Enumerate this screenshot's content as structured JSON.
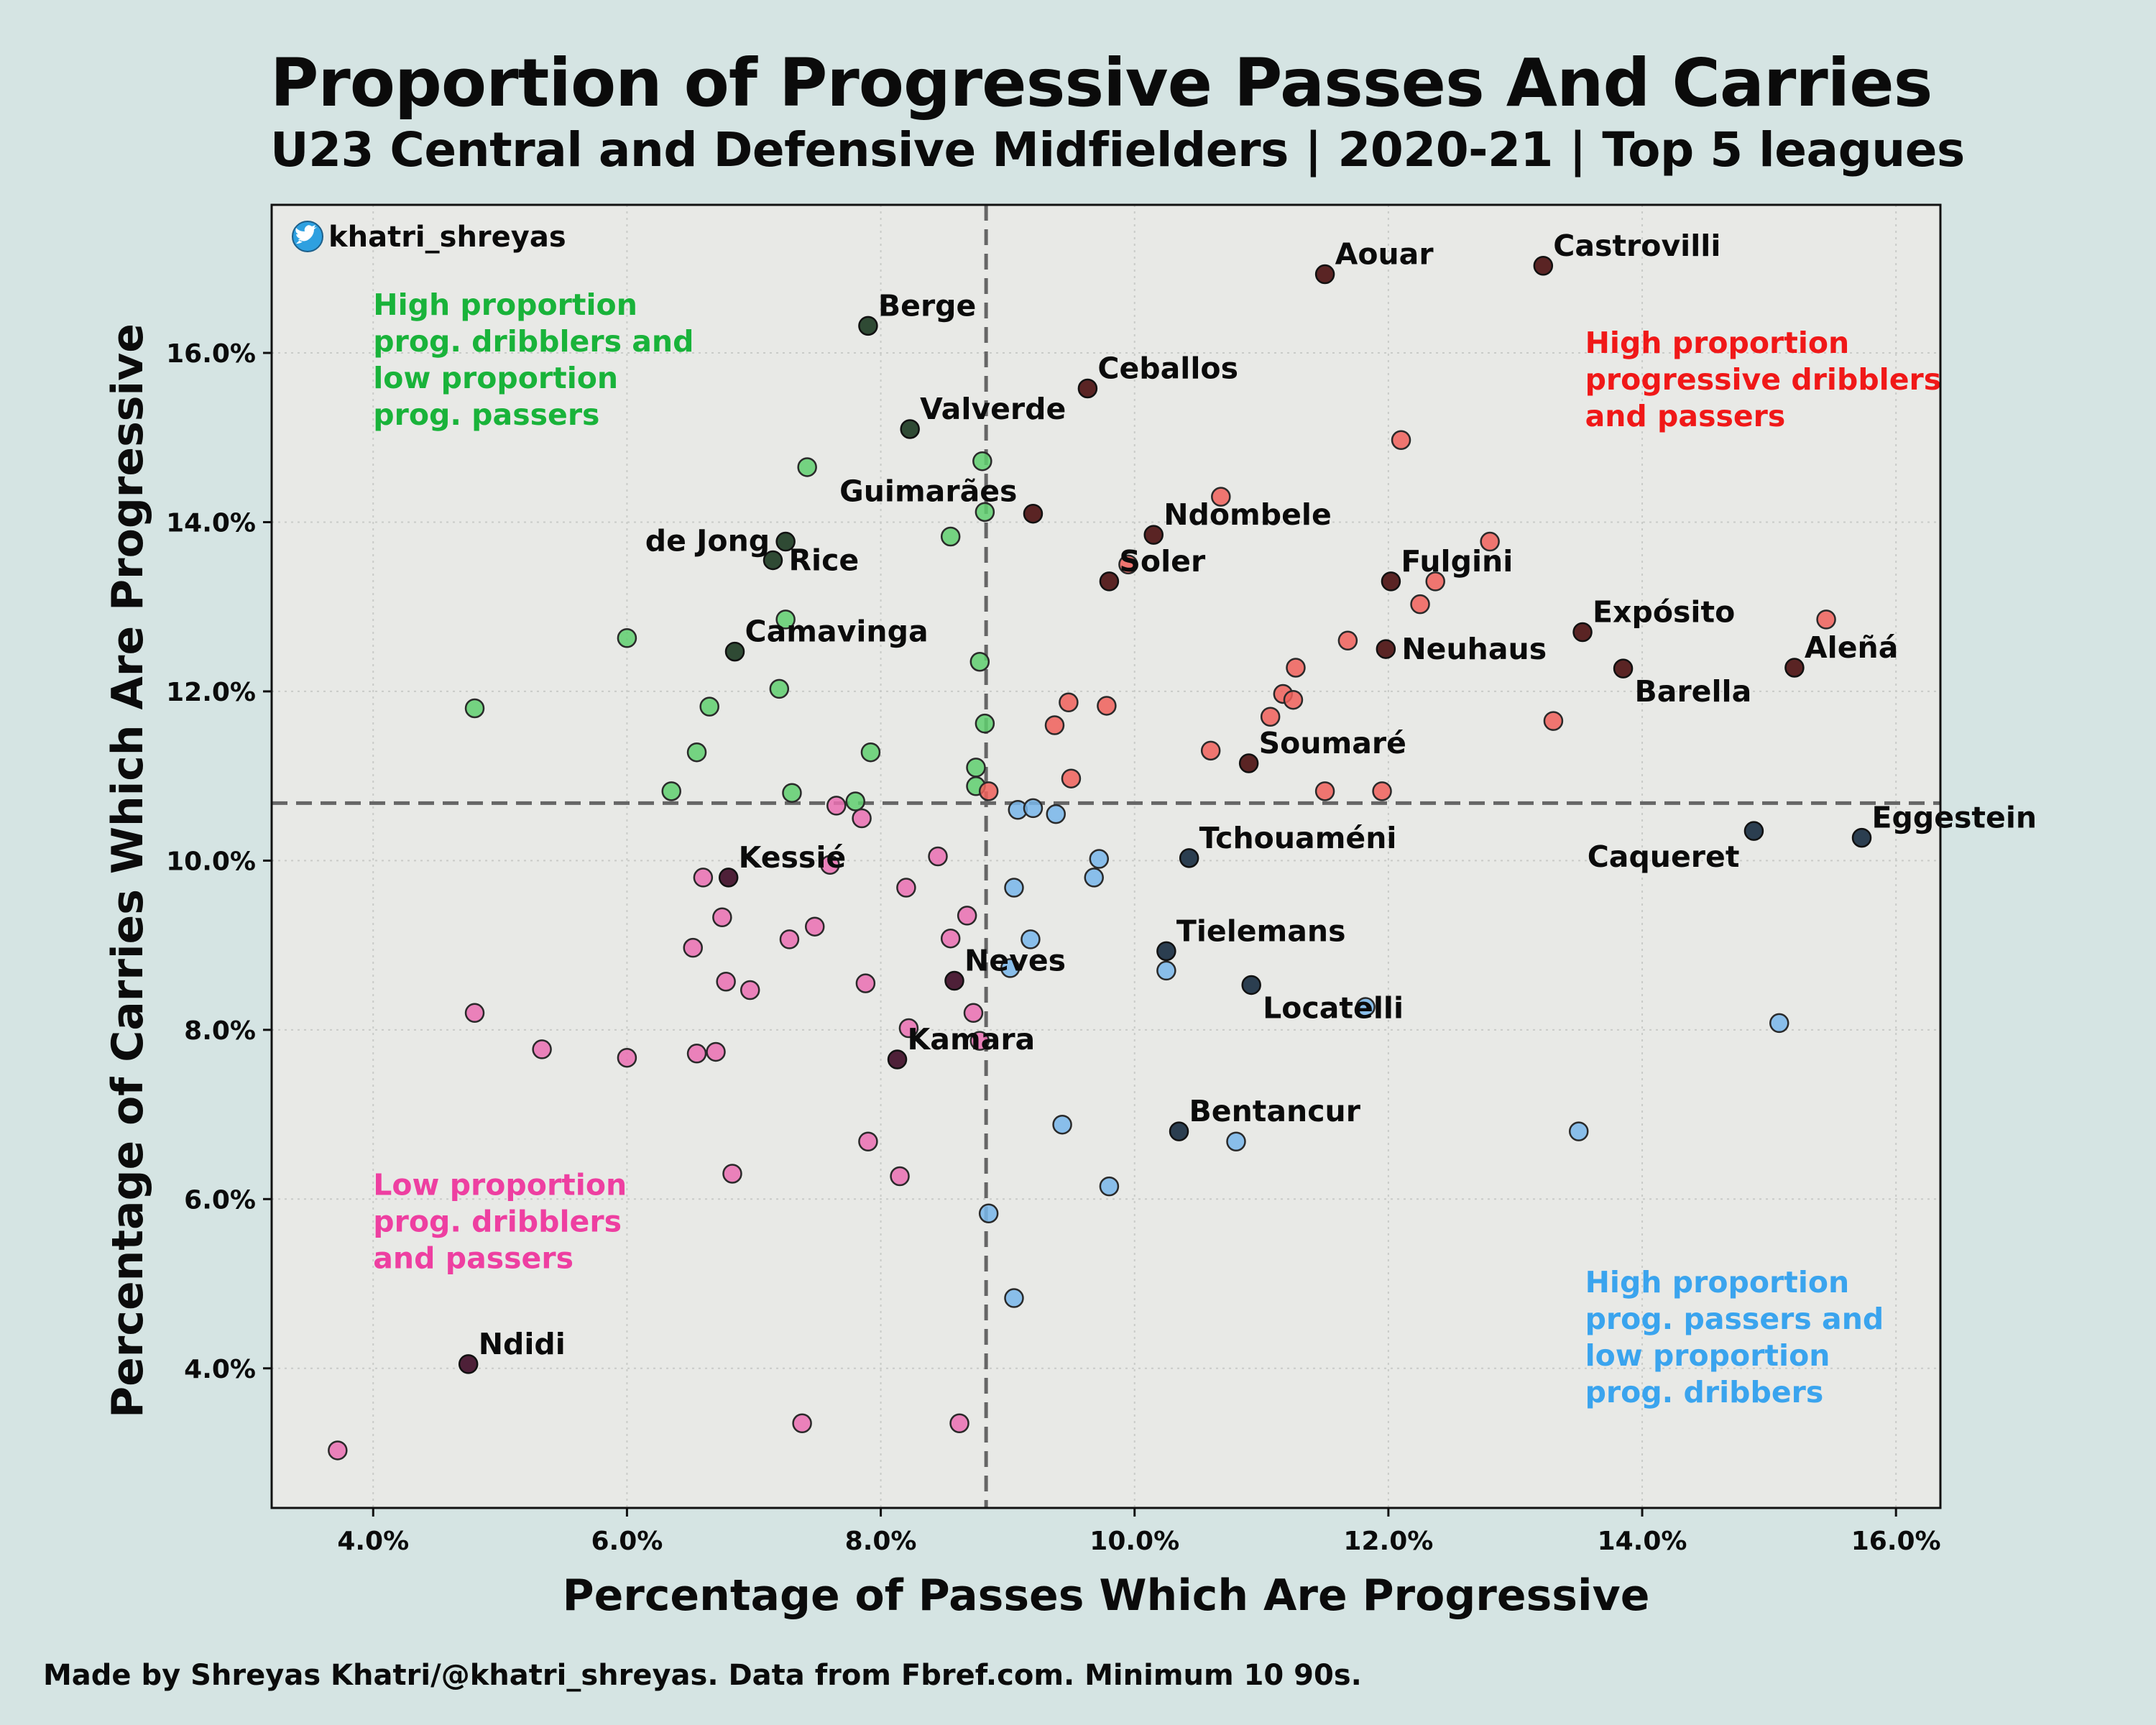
{
  "title": "Proportion of Progressive Passes And Carries",
  "subtitle": "U23 Central and Defensive Midfielders | 2020-21 | Top 5 leagues",
  "footer": "Made by Shreyas Khatri/@khatri_shreyas. Data from Fbref.com. Minimum 10 90s.",
  "handle": "khatri_shreyas",
  "handle_icon": "twitter-bird-icon",
  "colors": {
    "background": "#d5e4e3",
    "plot_background": "#e8e9e6",
    "green": "#5fcf6e",
    "red": "#f0605a",
    "pink": "#ea6fb1",
    "blue": "#78b6ea",
    "dark_green": "#2f4a34",
    "dark_red": "#5a2424",
    "dark_pink": "#4e2038",
    "dark_blue": "#2b3e50",
    "annot_green": "#19b33a",
    "annot_red": "#f01818",
    "annot_pink": "#ee3fa1",
    "annot_blue": "#3aa4ee"
  },
  "chart_data": {
    "type": "scatter",
    "xlabel": "Percentage of Passes Which Are Progressive",
    "ylabel": "Percentage of Carries Which Are Progressive",
    "xlim": [
      3.2,
      16.35
    ],
    "ylim": [
      2.35,
      17.75
    ],
    "x_ticks": [
      4,
      6,
      8,
      10,
      12,
      14,
      16
    ],
    "y_ticks": [
      4,
      6,
      8,
      10,
      12,
      14,
      16
    ],
    "x_tick_labels": [
      "4.0%",
      "6.0%",
      "8.0%",
      "10.0%",
      "12.0%",
      "14.0%",
      "16.0%"
    ],
    "y_tick_labels": [
      "4.0%",
      "6.0%",
      "8.0%",
      "10.0%",
      "12.0%",
      "14.0%",
      "16.0%"
    ],
    "grid": true,
    "mean_lines": {
      "x": 8.83,
      "y": 10.68
    },
    "quadrant_labels": [
      {
        "text": [
          "High proportion",
          "prog. dribblers and",
          "low proportion",
          "prog. passers"
        ],
        "color": "green",
        "x": 4.0,
        "y": 16.45
      },
      {
        "text": [
          "High proportion",
          "progressive dribblers",
          "and passers"
        ],
        "color": "red",
        "x": 13.55,
        "y": 16.0
      },
      {
        "text": [
          "Low proportion",
          "prog. dribblers",
          "and passers"
        ],
        "color": "pink",
        "x": 4.0,
        "y": 6.05
      },
      {
        "text": [
          "High proportion",
          "prog. passers and",
          "low proportion",
          "prog. dribbers"
        ],
        "color": "blue",
        "x": 13.55,
        "y": 4.9
      }
    ],
    "labeled_points": [
      {
        "name": "Aouar",
        "x": 11.5,
        "y": 16.93,
        "group": "red",
        "label_pos": "upper-right"
      },
      {
        "name": "Castrovilli",
        "x": 13.22,
        "y": 17.03,
        "group": "red",
        "label_pos": "upper-right"
      },
      {
        "name": "Berge",
        "x": 7.9,
        "y": 16.32,
        "group": "green",
        "label_pos": "upper-right"
      },
      {
        "name": "Ceballos",
        "x": 9.63,
        "y": 15.58,
        "group": "red",
        "label_pos": "upper-right"
      },
      {
        "name": "Valverde",
        "x": 8.23,
        "y": 15.1,
        "group": "green",
        "label_pos": "upper-right"
      },
      {
        "name": "Guimarães",
        "x": 9.2,
        "y": 14.1,
        "group": "red",
        "label_pos": "upper-left"
      },
      {
        "name": "Ndombele",
        "x": 10.15,
        "y": 13.85,
        "group": "red",
        "label_pos": "upper-right"
      },
      {
        "name": "de Jong",
        "x": 7.25,
        "y": 13.77,
        "group": "green",
        "label_pos": "left"
      },
      {
        "name": "Rice",
        "x": 7.15,
        "y": 13.55,
        "group": "green",
        "label_pos": "right"
      },
      {
        "name": "Soler",
        "x": 9.8,
        "y": 13.3,
        "group": "red",
        "label_pos": "upper-right"
      },
      {
        "name": "Fulgini",
        "x": 12.02,
        "y": 13.3,
        "group": "red",
        "label_pos": "upper-right"
      },
      {
        "name": "Neuhaus",
        "x": 11.98,
        "y": 12.5,
        "group": "red",
        "label_pos": "right"
      },
      {
        "name": "Expósito",
        "x": 13.53,
        "y": 12.7,
        "group": "red",
        "label_pos": "upper-right"
      },
      {
        "name": "Aleñá",
        "x": 15.2,
        "y": 12.28,
        "group": "red",
        "label_pos": "upper-right"
      },
      {
        "name": "Barella",
        "x": 13.85,
        "y": 12.27,
        "group": "red",
        "label_pos": "lower-right"
      },
      {
        "name": "Camavinga",
        "x": 6.85,
        "y": 12.47,
        "group": "green",
        "label_pos": "upper-right"
      },
      {
        "name": "Soumaré",
        "x": 10.9,
        "y": 11.15,
        "group": "red",
        "label_pos": "upper-right"
      },
      {
        "name": "Eggestein",
        "x": 15.73,
        "y": 10.27,
        "group": "blue",
        "label_pos": "upper-right"
      },
      {
        "name": "Caqueret",
        "x": 14.88,
        "y": 10.35,
        "group": "blue",
        "label_pos": "lower-left"
      },
      {
        "name": "Tchouaméni",
        "x": 10.43,
        "y": 10.03,
        "group": "blue",
        "label_pos": "upper-right"
      },
      {
        "name": "Kessié",
        "x": 6.8,
        "y": 9.8,
        "group": "pink",
        "label_pos": "upper-right"
      },
      {
        "name": "Tielemans",
        "x": 10.25,
        "y": 8.93,
        "group": "blue",
        "label_pos": "upper-right"
      },
      {
        "name": "Neves",
        "x": 8.58,
        "y": 8.58,
        "group": "pink",
        "label_pos": "upper-right"
      },
      {
        "name": "Locatelli",
        "x": 10.92,
        "y": 8.53,
        "group": "blue",
        "label_pos": "lower-right"
      },
      {
        "name": "Kamara",
        "x": 8.13,
        "y": 7.65,
        "group": "pink",
        "label_pos": "upper-right"
      },
      {
        "name": "Bentancur",
        "x": 10.35,
        "y": 6.8,
        "group": "blue",
        "label_pos": "upper-right"
      },
      {
        "name": "Ndidi",
        "x": 4.75,
        "y": 4.05,
        "group": "pink",
        "label_pos": "upper-right"
      }
    ],
    "series": [
      {
        "group": "green",
        "points": [
          [
            7.42,
            14.65
          ],
          [
            8.8,
            14.72
          ],
          [
            8.82,
            14.12
          ],
          [
            8.55,
            13.83
          ],
          [
            6.0,
            12.63
          ],
          [
            4.8,
            11.8
          ],
          [
            7.25,
            12.85
          ],
          [
            7.2,
            12.03
          ],
          [
            8.78,
            12.35
          ],
          [
            6.65,
            11.82
          ],
          [
            8.82,
            11.62
          ],
          [
            6.55,
            11.28
          ],
          [
            7.92,
            11.28
          ],
          [
            8.75,
            11.1
          ],
          [
            6.35,
            10.82
          ],
          [
            7.3,
            10.8
          ],
          [
            7.8,
            10.7
          ],
          [
            8.75,
            10.88
          ]
        ]
      },
      {
        "group": "red",
        "points": [
          [
            12.1,
            14.97
          ],
          [
            10.68,
            14.3
          ],
          [
            12.8,
            13.77
          ],
          [
            12.37,
            13.3
          ],
          [
            12.25,
            13.03
          ],
          [
            9.95,
            13.5
          ],
          [
            15.45,
            12.85
          ],
          [
            11.68,
            12.6
          ],
          [
            11.27,
            12.28
          ],
          [
            11.17,
            11.97
          ],
          [
            11.25,
            11.9
          ],
          [
            11.07,
            11.7
          ],
          [
            9.48,
            11.87
          ],
          [
            9.78,
            11.83
          ],
          [
            9.37,
            11.6
          ],
          [
            13.3,
            11.65
          ],
          [
            10.6,
            11.3
          ],
          [
            9.5,
            10.97
          ],
          [
            11.5,
            10.82
          ],
          [
            11.95,
            10.82
          ],
          [
            8.85,
            10.82
          ]
        ]
      },
      {
        "group": "blue",
        "points": [
          [
            9.08,
            10.6
          ],
          [
            9.2,
            10.62
          ],
          [
            9.38,
            10.55
          ],
          [
            9.72,
            10.02
          ],
          [
            9.68,
            9.8
          ],
          [
            9.05,
            9.68
          ],
          [
            9.18,
            9.07
          ],
          [
            9.02,
            8.73
          ],
          [
            10.25,
            8.7
          ],
          [
            11.82,
            8.27
          ],
          [
            15.08,
            8.08
          ],
          [
            9.43,
            6.88
          ],
          [
            10.8,
            6.68
          ],
          [
            13.5,
            6.8
          ],
          [
            9.8,
            6.15
          ],
          [
            8.85,
            5.83
          ],
          [
            9.05,
            4.83
          ]
        ]
      },
      {
        "group": "pink",
        "points": [
          [
            7.65,
            10.65
          ],
          [
            7.85,
            10.5
          ],
          [
            6.6,
            9.8
          ],
          [
            7.6,
            9.95
          ],
          [
            8.45,
            10.05
          ],
          [
            8.2,
            9.68
          ],
          [
            6.75,
            9.33
          ],
          [
            8.68,
            9.35
          ],
          [
            7.48,
            9.22
          ],
          [
            7.28,
            9.07
          ],
          [
            8.55,
            9.08
          ],
          [
            6.52,
            8.97
          ],
          [
            6.78,
            8.57
          ],
          [
            6.97,
            8.47
          ],
          [
            7.88,
            8.55
          ],
          [
            4.8,
            8.2
          ],
          [
            8.73,
            8.2
          ],
          [
            8.22,
            8.02
          ],
          [
            8.78,
            7.87
          ],
          [
            5.33,
            7.77
          ],
          [
            6.0,
            7.67
          ],
          [
            6.55,
            7.72
          ],
          [
            6.7,
            7.74
          ],
          [
            7.9,
            6.68
          ],
          [
            6.83,
            6.3
          ],
          [
            8.15,
            6.27
          ],
          [
            3.72,
            3.03
          ],
          [
            7.38,
            3.35
          ],
          [
            8.62,
            3.35
          ]
        ]
      }
    ]
  }
}
